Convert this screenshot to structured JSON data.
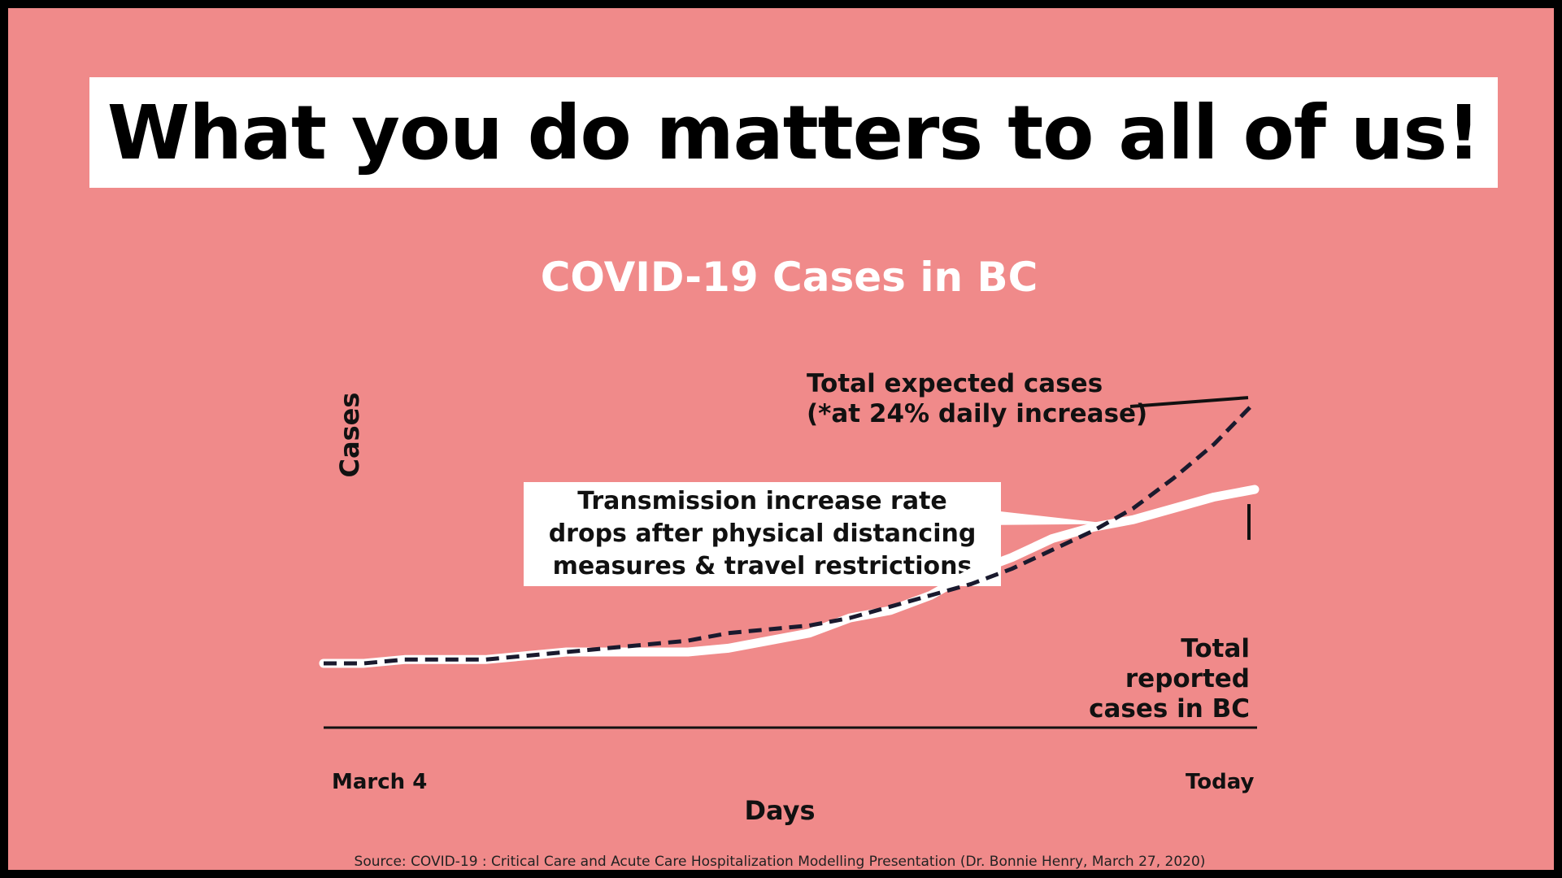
{
  "headline": "What you do matters to all of us!",
  "colors": {
    "background": "#f08a8a",
    "reported_line": "#ffffff",
    "expected_line": "#1a1a2e"
  },
  "chart_data": {
    "type": "line",
    "title": "COVID-19 Cases in BC",
    "xlabel": "Days",
    "ylabel": "Cases",
    "x_tick_labels": [
      "March 4",
      "Today"
    ],
    "x": [
      0,
      1,
      2,
      3,
      4,
      5,
      6,
      7,
      8,
      9,
      10,
      11,
      12,
      13,
      14,
      15,
      16,
      17,
      18,
      19,
      20,
      21,
      22,
      23
    ],
    "ylim": [
      0,
      100
    ],
    "grid": false,
    "series": [
      {
        "name": "Total expected cases",
        "style": "dashed",
        "values": [
          17,
          17,
          18,
          18,
          18,
          19,
          20,
          21,
          22,
          23,
          25,
          26,
          27,
          29,
          32,
          35,
          38,
          42,
          47,
          52,
          58,
          66,
          75,
          86
        ]
      },
      {
        "name": "Total reported cases in BC",
        "style": "solid",
        "values": [
          17,
          17,
          18,
          18,
          18,
          19,
          20,
          20,
          20,
          20,
          21,
          23,
          25,
          29,
          31,
          35,
          41,
          45,
          50,
          53,
          55,
          58,
          61,
          63
        ]
      }
    ],
    "annotations": {
      "expected": [
        "Total expected cases",
        "(*at 24% daily increase)"
      ],
      "reported": [
        "Total",
        "reported",
        "cases in BC"
      ],
      "callout": [
        "Transmission increase rate",
        "drops after physical distancing",
        "measures & travel restrictions"
      ]
    }
  },
  "source": "Source: COVID-19 : Critical Care and Acute Care Hospitalization Modelling Presentation (Dr. Bonnie Henry, March 27, 2020)"
}
